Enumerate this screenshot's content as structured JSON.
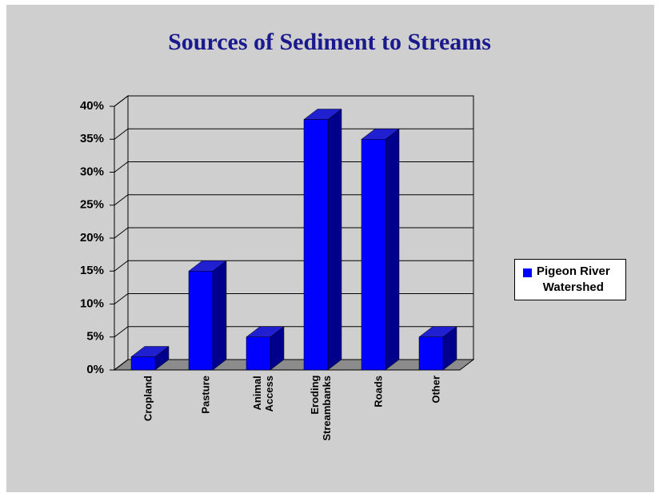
{
  "chart_data": {
    "type": "bar3d",
    "title": "Sources of Sediment to Streams",
    "categories": [
      "Cropland",
      "Pasture",
      "Animal\nAccess",
      "Eroding\nStreambanks",
      "Roads",
      "Other"
    ],
    "series": [
      {
        "name": "Pigeon River\nWatershed",
        "color": "#0000ff",
        "values": [
          2,
          15,
          5,
          38,
          35,
          5
        ]
      }
    ],
    "ylim": [
      0,
      40
    ],
    "yticks": [
      {
        "value": 0,
        "label": "0%"
      },
      {
        "value": 5,
        "label": "5%"
      },
      {
        "value": 10,
        "label": "10%"
      },
      {
        "value": 15,
        "label": "15%"
      },
      {
        "value": 20,
        "label": "20%"
      },
      {
        "value": 25,
        "label": "25%"
      },
      {
        "value": 30,
        "label": "30%"
      },
      {
        "value": 35,
        "label": "35%"
      },
      {
        "value": 40,
        "label": "40%"
      }
    ],
    "grid": true,
    "legend": "right"
  }
}
